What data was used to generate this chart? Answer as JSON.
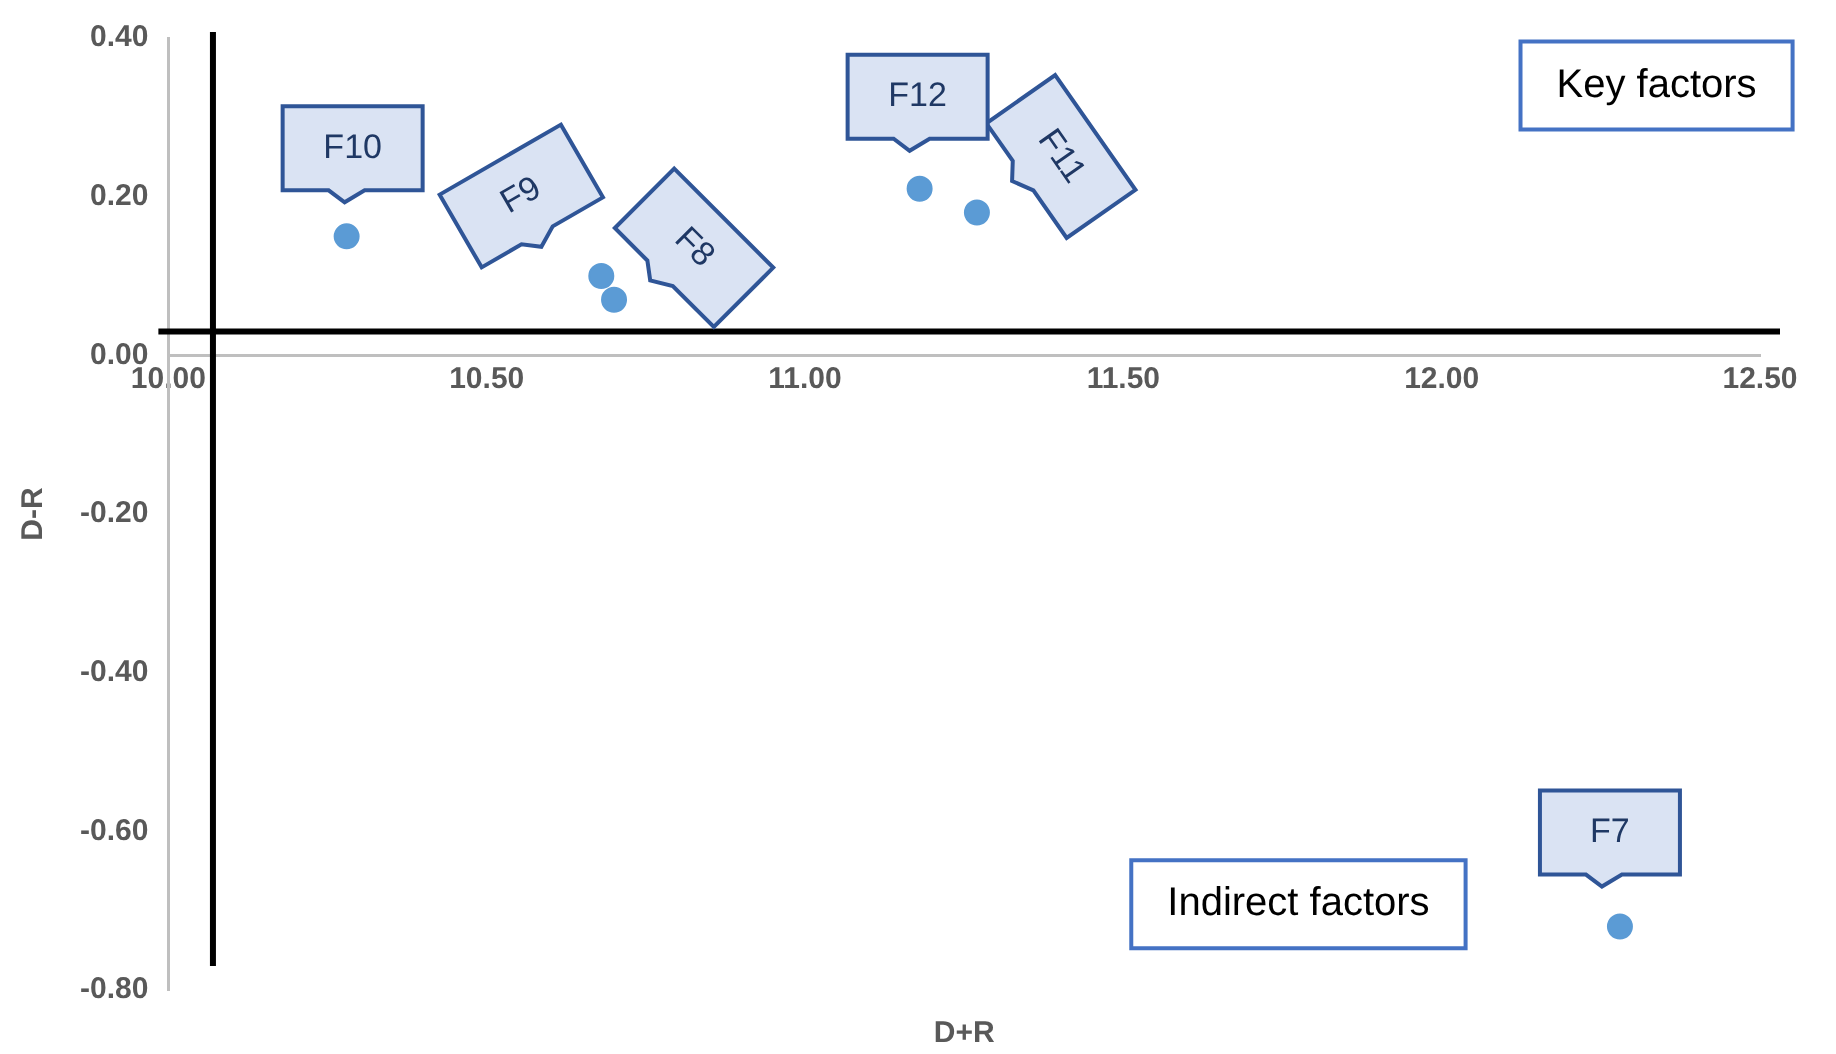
{
  "chart_data": {
    "type": "scatter",
    "xlabel": "D+R",
    "ylabel": "D-R",
    "series": [
      {
        "color": "#5b9bd5",
        "x": [
          12.28,
          11.27,
          10.7,
          10.68,
          10.28,
          11.18
        ],
        "values": [
          -0.72,
          0.18,
          0.07,
          0.1,
          0.15,
          0.21
        ]
      }
    ],
    "xlim": [
      10,
      12.5
    ],
    "xticks": [
      {
        "value": 10,
        "label": "10.00"
      },
      {
        "value": 10.5,
        "label": "10.50"
      },
      {
        "value": 11,
        "label": "11.00"
      },
      {
        "value": 11.5,
        "label": "11.50"
      },
      {
        "value": 12,
        "label": "12.00"
      },
      {
        "value": 12.5,
        "label": "12.50"
      }
    ],
    "ylim": [
      -0.8,
      0.4
    ],
    "yticks": [
      {
        "value": -0.8,
        "label": "-0.80"
      },
      {
        "value": -0.6,
        "label": "-0.60"
      },
      {
        "value": -0.4,
        "label": "-0.40"
      },
      {
        "value": -0.2,
        "label": "-0.20"
      },
      {
        "value": 0,
        "label": "0.00"
      },
      {
        "value": 0.2,
        "label": "0.20"
      },
      {
        "value": 0.4,
        "label": "0.40"
      }
    ],
    "ref_lines": [
      {
        "axis": "x",
        "value": 10.07,
        "color": "#000000"
      },
      {
        "axis": "y",
        "value": 0.03,
        "color": "#000000"
      }
    ],
    "annotations": [
      "Key factors",
      "Indirect factors",
      {
        "text": "F7",
        "x": 12.28,
        "y": -0.72
      },
      {
        "text": "F11",
        "x": 11.27,
        "y": 0.18
      },
      {
        "text": "F8",
        "x": 10.7,
        "y": 0.07
      },
      {
        "text": "F9",
        "x": 10.68,
        "y": 0.1
      },
      {
        "text": "F10",
        "x": 10.28,
        "y": 0.15
      },
      {
        "text": "F12",
        "x": 11.18,
        "y": 0.21
      }
    ],
    "grid": false,
    "legend": false,
    "marker": "circle"
  }
}
